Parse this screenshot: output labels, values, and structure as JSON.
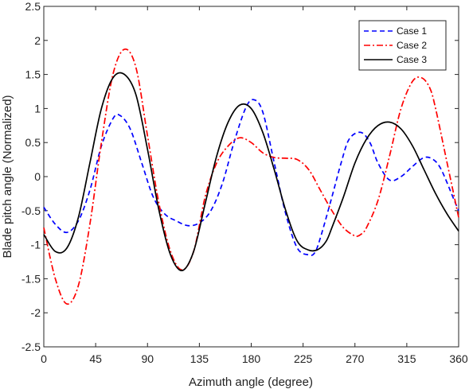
{
  "chart_data": {
    "type": "line",
    "xlabel": "Azimuth angle (degree)",
    "ylabel": "Blade pitch angle (Normalized)",
    "xlim": [
      0,
      360
    ],
    "ylim": [
      -2.5,
      2.5
    ],
    "xticks": [
      0,
      45,
      90,
      135,
      180,
      225,
      270,
      315,
      360
    ],
    "yticks": [
      -2.5,
      -2,
      -1.5,
      -1,
      -0.5,
      0,
      0.5,
      1,
      1.5,
      2,
      2.5
    ],
    "xtick_labels": [
      "0",
      "45",
      "90",
      "135",
      "180",
      "225",
      "270",
      "315",
      "360"
    ],
    "ytick_labels": [
      "-2.5",
      "-2",
      "-1.5",
      "-1",
      "-0.5",
      "0",
      "0.5",
      "1",
      "1.5",
      "2",
      "2.5"
    ],
    "grid": false,
    "legend_position": "top-right",
    "series": [
      {
        "name": "Case 1",
        "color": "#0000ff",
        "style": "dashed",
        "x": [
          0,
          10,
          20,
          30,
          40,
          50,
          60,
          66,
          75,
          85,
          95,
          105,
          115,
          125,
          135,
          145,
          155,
          165,
          175,
          182,
          190,
          200,
          210,
          220,
          230,
          235,
          240,
          250,
          258,
          265,
          275,
          283,
          290,
          300,
          310,
          320,
          330,
          338,
          345,
          355,
          360
        ],
        "y": [
          -0.45,
          -0.7,
          -0.82,
          -0.65,
          -0.2,
          0.45,
          0.85,
          0.9,
          0.7,
          0.2,
          -0.3,
          -0.55,
          -0.65,
          -0.72,
          -0.68,
          -0.5,
          -0.1,
          0.5,
          1.0,
          1.13,
          0.95,
          0.2,
          -0.55,
          -1.05,
          -1.15,
          -1.12,
          -0.9,
          -0.3,
          0.2,
          0.55,
          0.65,
          0.5,
          0.2,
          -0.05,
          0.0,
          0.15,
          0.28,
          0.25,
          0.1,
          -0.3,
          -0.5
        ]
      },
      {
        "name": "Case 2",
        "color": "#ff0000",
        "style": "dash-dot",
        "x": [
          0,
          10,
          20,
          30,
          40,
          50,
          60,
          70,
          80,
          90,
          100,
          110,
          120,
          130,
          140,
          150,
          160,
          170,
          180,
          190,
          200,
          210,
          220,
          230,
          240,
          250,
          260,
          270,
          275,
          280,
          290,
          300,
          310,
          320,
          328,
          335,
          340,
          350,
          360
        ],
        "y": [
          -0.75,
          -1.5,
          -1.87,
          -1.6,
          -0.7,
          0.5,
          1.5,
          1.87,
          1.6,
          0.6,
          -0.4,
          -1.1,
          -1.37,
          -1.1,
          -0.3,
          0.2,
          0.45,
          0.57,
          0.5,
          0.35,
          0.28,
          0.27,
          0.25,
          0.1,
          -0.2,
          -0.5,
          -0.75,
          -0.87,
          -0.85,
          -0.75,
          -0.35,
          0.3,
          1.0,
          1.4,
          1.45,
          1.3,
          1.0,
          0.2,
          -0.6
        ]
      },
      {
        "name": "Case 3",
        "color": "#000000",
        "style": "solid",
        "x": [
          0,
          10,
          20,
          30,
          40,
          50,
          60,
          70,
          80,
          90,
          100,
          110,
          120,
          130,
          140,
          150,
          160,
          170,
          180,
          190,
          200,
          210,
          220,
          230,
          238,
          245,
          250,
          260,
          270,
          280,
          290,
          300,
          310,
          320,
          330,
          340,
          350,
          360
        ],
        "y": [
          -0.85,
          -1.1,
          -1.05,
          -0.6,
          0.2,
          1.0,
          1.45,
          1.5,
          1.2,
          0.4,
          -0.5,
          -1.15,
          -1.38,
          -1.1,
          -0.4,
          0.3,
          0.8,
          1.05,
          1.0,
          0.65,
          0.1,
          -0.5,
          -0.95,
          -1.08,
          -1.07,
          -0.95,
          -0.75,
          -0.3,
          0.2,
          0.55,
          0.75,
          0.8,
          0.7,
          0.45,
          0.1,
          -0.25,
          -0.55,
          -0.8
        ]
      }
    ]
  }
}
